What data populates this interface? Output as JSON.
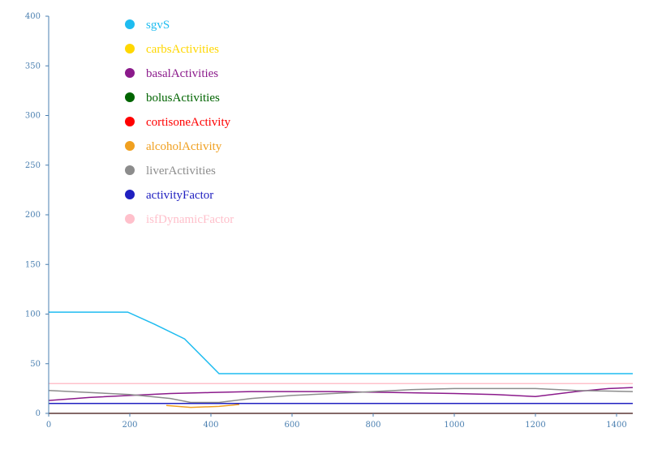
{
  "chart_data": {
    "type": "line",
    "xlim": [
      0,
      1440
    ],
    "ylim": [
      0,
      400
    ],
    "x_ticks": [
      0,
      200,
      400,
      600,
      800,
      1000,
      1200,
      1400
    ],
    "y_ticks": [
      0,
      50,
      100,
      150,
      200,
      250,
      300,
      350,
      400
    ],
    "grid": false,
    "legend_placement": "top-left",
    "series": [
      {
        "name": "sgvS",
        "color": "#1ebcf0",
        "points": [
          [
            0,
            102
          ],
          [
            195,
            102
          ],
          [
            260,
            90
          ],
          [
            335,
            75
          ],
          [
            420,
            40
          ],
          [
            1440,
            40
          ]
        ]
      },
      {
        "name": "carbsActivities",
        "color": "#ffd700",
        "points": [
          [
            0,
            0
          ],
          [
            1440,
            0
          ]
        ]
      },
      {
        "name": "basalActivities",
        "color": "#8b1a8b",
        "points": [
          [
            0,
            13
          ],
          [
            100,
            16
          ],
          [
            200,
            18
          ],
          [
            300,
            20
          ],
          [
            400,
            21
          ],
          [
            500,
            22
          ],
          [
            700,
            22
          ],
          [
            850,
            21
          ],
          [
            1000,
            20
          ],
          [
            1100,
            19
          ],
          [
            1200,
            17
          ],
          [
            1300,
            22
          ],
          [
            1380,
            25
          ],
          [
            1440,
            26
          ]
        ]
      },
      {
        "name": "bolusActivities",
        "color": "#006400",
        "points": [
          [
            0,
            0
          ],
          [
            1440,
            0
          ]
        ]
      },
      {
        "name": "cortisoneActivity",
        "color": "#ff0000",
        "points": [
          [
            0,
            0
          ],
          [
            1440,
            0
          ]
        ]
      },
      {
        "name": "alcoholActivity",
        "color": "#f0a020",
        "points": [
          [
            290,
            8
          ],
          [
            350,
            6
          ],
          [
            420,
            7
          ],
          [
            470,
            9
          ]
        ]
      },
      {
        "name": "liverActivities",
        "color": "#8c8c8c",
        "points": [
          [
            0,
            23
          ],
          [
            100,
            21
          ],
          [
            200,
            19
          ],
          [
            300,
            15
          ],
          [
            350,
            11
          ],
          [
            420,
            11
          ],
          [
            500,
            15
          ],
          [
            600,
            18
          ],
          [
            700,
            20
          ],
          [
            800,
            22
          ],
          [
            900,
            24
          ],
          [
            1000,
            25
          ],
          [
            1200,
            25
          ],
          [
            1300,
            23
          ],
          [
            1440,
            22
          ]
        ]
      },
      {
        "name": "activityFactor",
        "color": "#2020c0",
        "points": [
          [
            0,
            10
          ],
          [
            1440,
            10
          ]
        ]
      },
      {
        "name": "isfDynamicFactor",
        "color": "#ffc0cb",
        "points": [
          [
            0,
            30
          ],
          [
            1440,
            30
          ]
        ]
      }
    ]
  }
}
